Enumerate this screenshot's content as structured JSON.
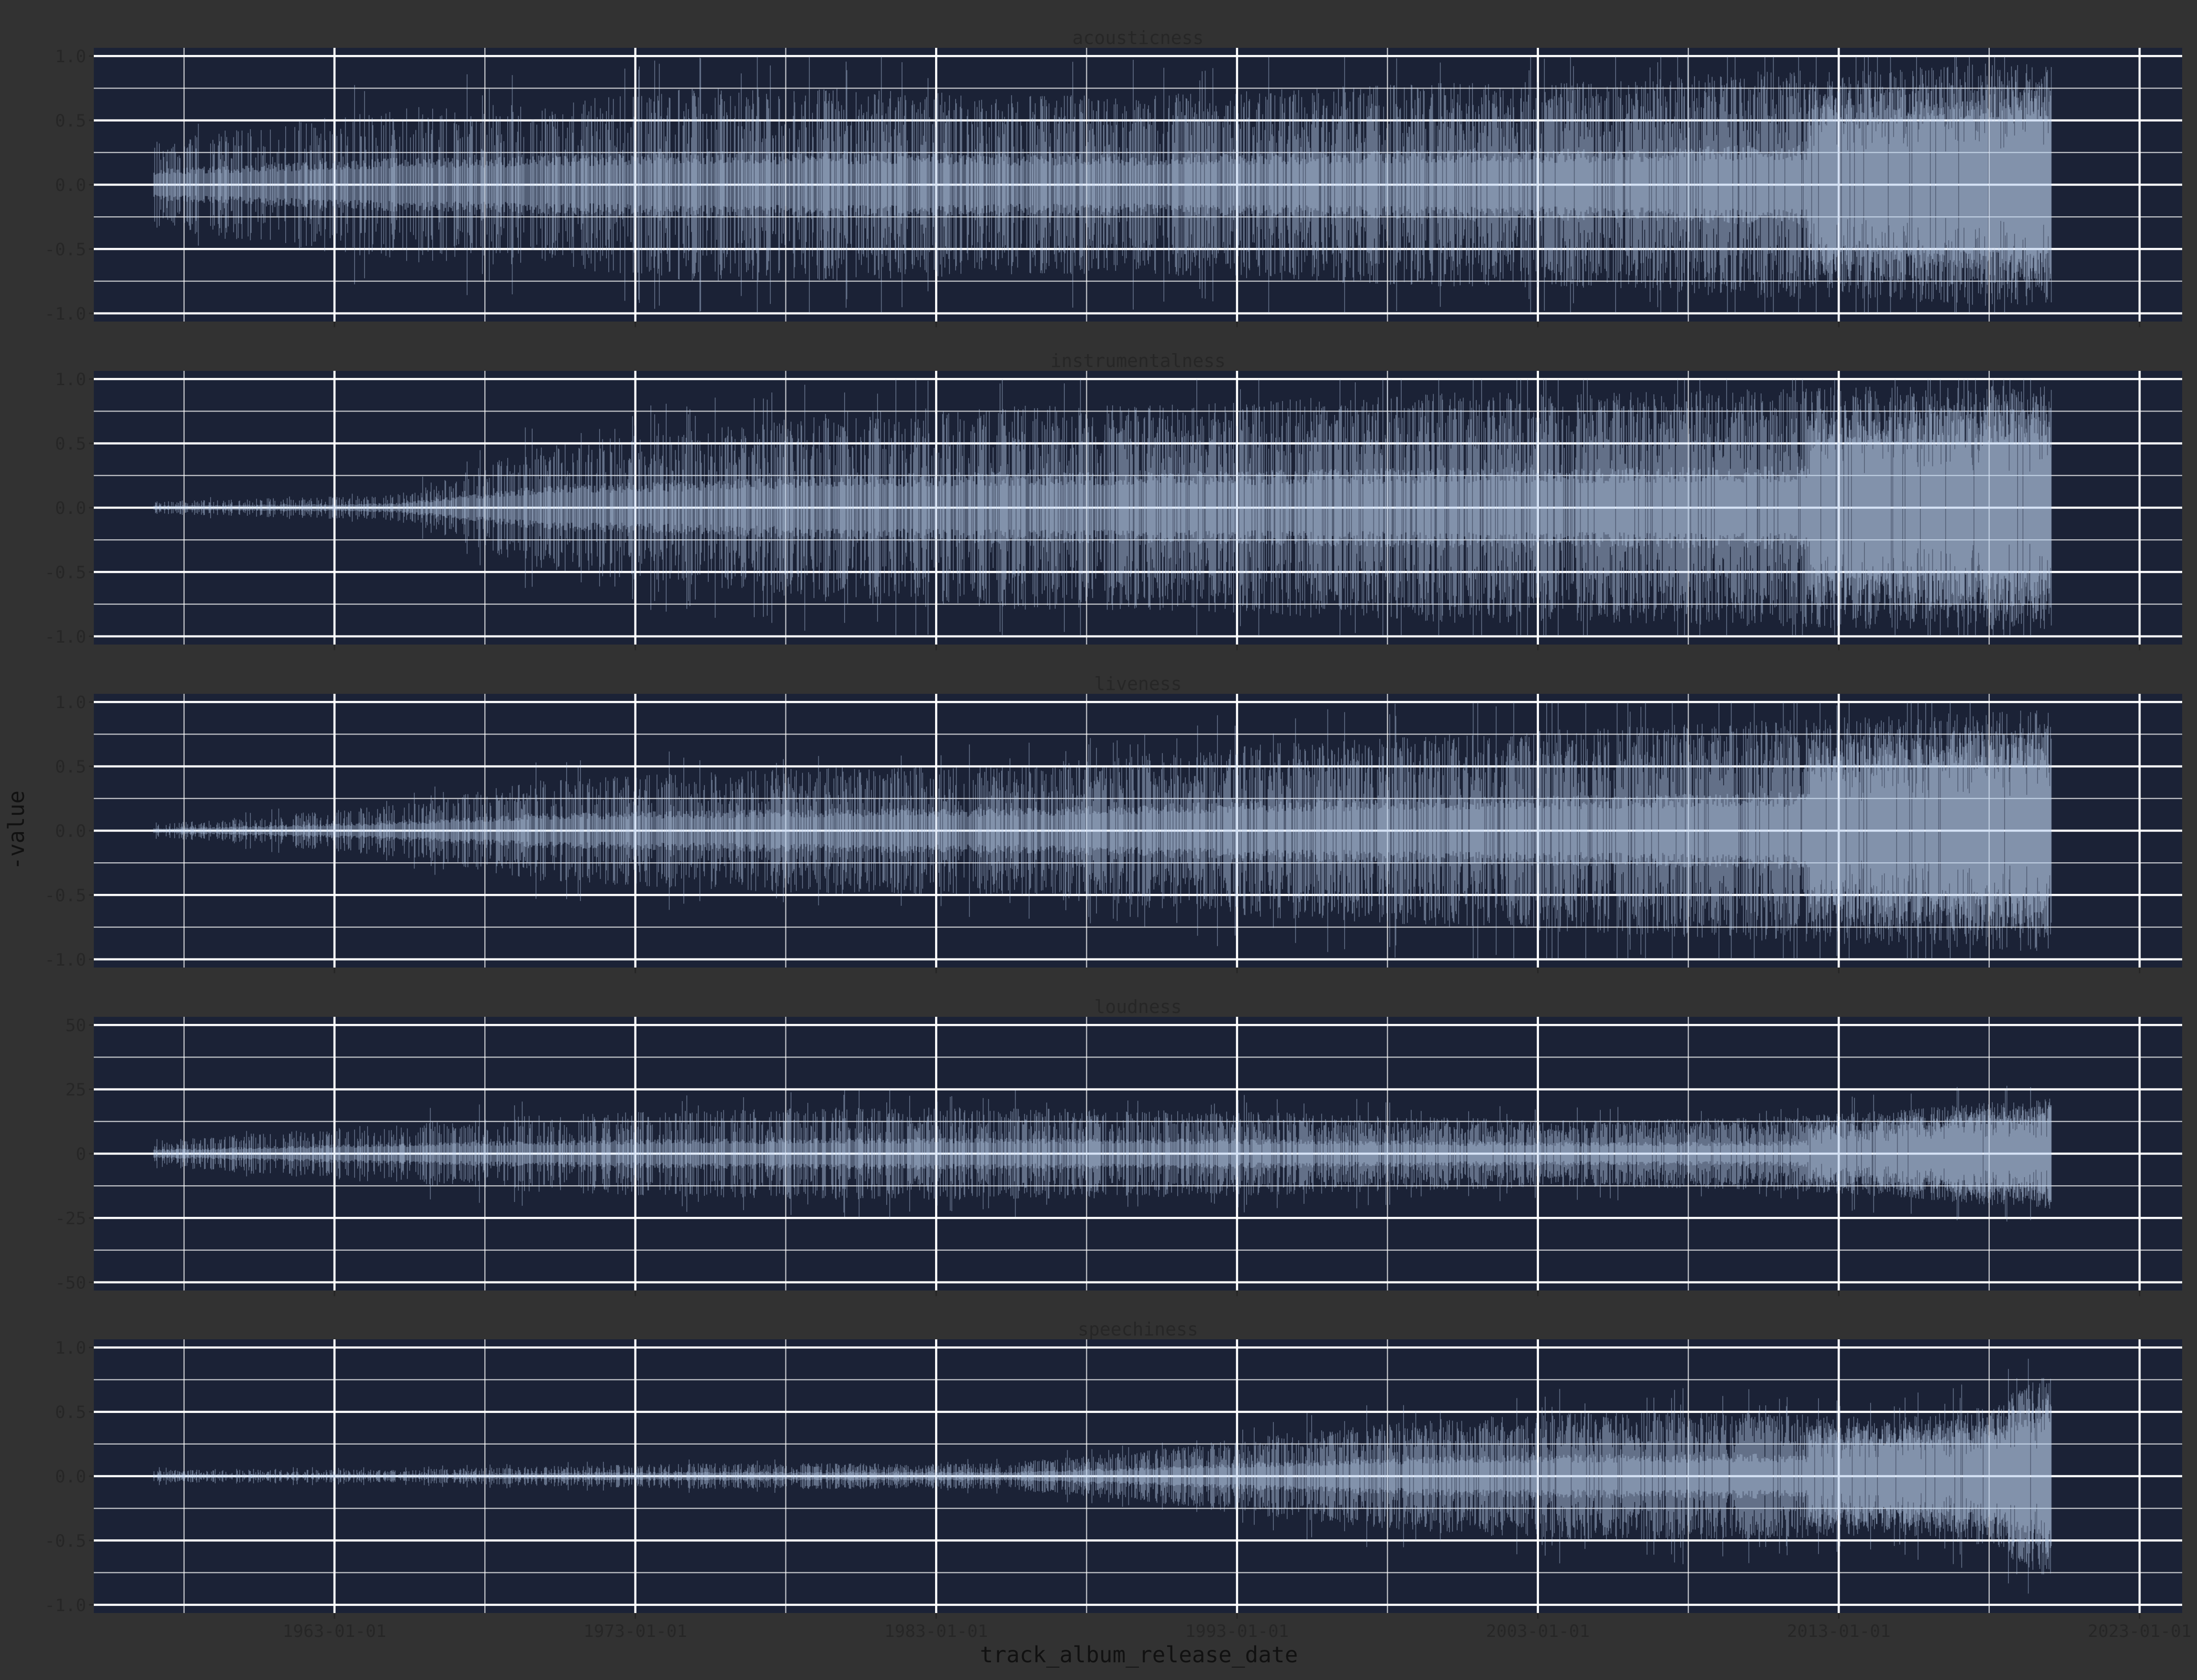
{
  "chart_data": {
    "type": "area",
    "title": "",
    "xlabel": "track_album_release_date",
    "ylabel": "-value",
    "x_tick_labels": [
      "1963-01-01",
      "1973-01-01",
      "1983-01-01",
      "1993-01-01",
      "2003-01-01",
      "2013-01-01",
      "2023-01-01"
    ],
    "x_range": [
      "1955-01-01",
      "2024-06-01"
    ],
    "data_x_range": [
      "1957-01-01",
      "2020-01-29"
    ],
    "grid": true,
    "legend": "none",
    "colors": {
      "page_background": "#323232",
      "panel_background": "#1b2236",
      "grid_line": "#ffffff",
      "fill": "#bcd0ee",
      "text": "#262626"
    },
    "series": [
      {
        "name": "acousticness",
        "ylim": [
          -1.0,
          1.0
        ],
        "y_tick_labels": [
          "1.0",
          "0.5",
          "0.0",
          "-0.5",
          "-1.0"
        ],
        "y_ticks": [
          1.0,
          0.5,
          0.0,
          -0.5,
          -1.0
        ],
        "envelope": {
          "years": [
            1957,
            1965,
            1970,
            1975,
            1980,
            1985,
            1990,
            1995,
            2000,
            2005,
            2010,
            2015,
            2018,
            2020
          ],
          "amplitude": [
            0.35,
            0.6,
            0.65,
            0.75,
            0.75,
            0.7,
            0.7,
            0.75,
            0.8,
            0.8,
            0.88,
            0.9,
            0.95,
            0.95
          ]
        }
      },
      {
        "name": "instrumentalness",
        "ylim": [
          -1.0,
          1.0
        ],
        "y_tick_labels": [
          "1.0",
          "0.5",
          "0.0",
          "-0.5",
          "-1.0"
        ],
        "y_ticks": [
          1.0,
          0.5,
          0.0,
          -0.5,
          -1.0
        ],
        "envelope": {
          "years": [
            1957,
            1965,
            1970,
            1975,
            1980,
            1985,
            1990,
            1995,
            2000,
            2005,
            2010,
            2015,
            2018,
            2020
          ],
          "amplitude": [
            0.05,
            0.1,
            0.5,
            0.6,
            0.75,
            0.8,
            0.8,
            0.85,
            0.9,
            0.9,
            0.92,
            0.95,
            0.95,
            0.95
          ]
        }
      },
      {
        "name": "liveness",
        "ylim": [
          -1.0,
          1.0
        ],
        "y_tick_labels": [
          "1.0",
          "0.5",
          "0.0",
          "-0.5",
          "-1.0"
        ],
        "y_ticks": [
          1.0,
          0.5,
          0.0,
          -0.5,
          -1.0
        ],
        "envelope": {
          "years": [
            1957,
            1965,
            1970,
            1975,
            1980,
            1985,
            1990,
            1995,
            2000,
            2005,
            2010,
            2015,
            2018,
            2020
          ],
          "amplitude": [
            0.05,
            0.2,
            0.4,
            0.45,
            0.5,
            0.5,
            0.6,
            0.7,
            0.75,
            0.8,
            0.85,
            0.9,
            0.92,
            0.95
          ]
        }
      },
      {
        "name": "loudness",
        "ylim": [
          -50,
          50
        ],
        "y_tick_labels": [
          "50",
          "25",
          "0",
          "-25",
          "-50"
        ],
        "y_ticks": [
          50,
          25,
          0,
          -25,
          -50
        ],
        "envelope": {
          "years": [
            1957,
            1965,
            1970,
            1975,
            1980,
            1985,
            1990,
            1995,
            2000,
            2005,
            2010,
            2015,
            2018,
            2020
          ],
          "amplitude": [
            5,
            12,
            15,
            17,
            18,
            18,
            17,
            16,
            14,
            13,
            14,
            17,
            20,
            22
          ]
        }
      },
      {
        "name": "speechiness",
        "ylim": [
          -1.0,
          1.0
        ],
        "y_tick_labels": [
          "1.0",
          "0.5",
          "0.0",
          "-0.5",
          "-1.0"
        ],
        "y_ticks": [
          1.0,
          0.5,
          0.0,
          -0.5,
          -1.0
        ],
        "envelope": {
          "years": [
            1957,
            1965,
            1970,
            1975,
            1980,
            1985,
            1990,
            1995,
            2000,
            2005,
            2010,
            2015,
            2018,
            2020
          ],
          "amplitude": [
            0.05,
            0.05,
            0.08,
            0.1,
            0.1,
            0.1,
            0.2,
            0.35,
            0.45,
            0.5,
            0.5,
            0.45,
            0.55,
            0.8
          ]
        }
      }
    ]
  }
}
